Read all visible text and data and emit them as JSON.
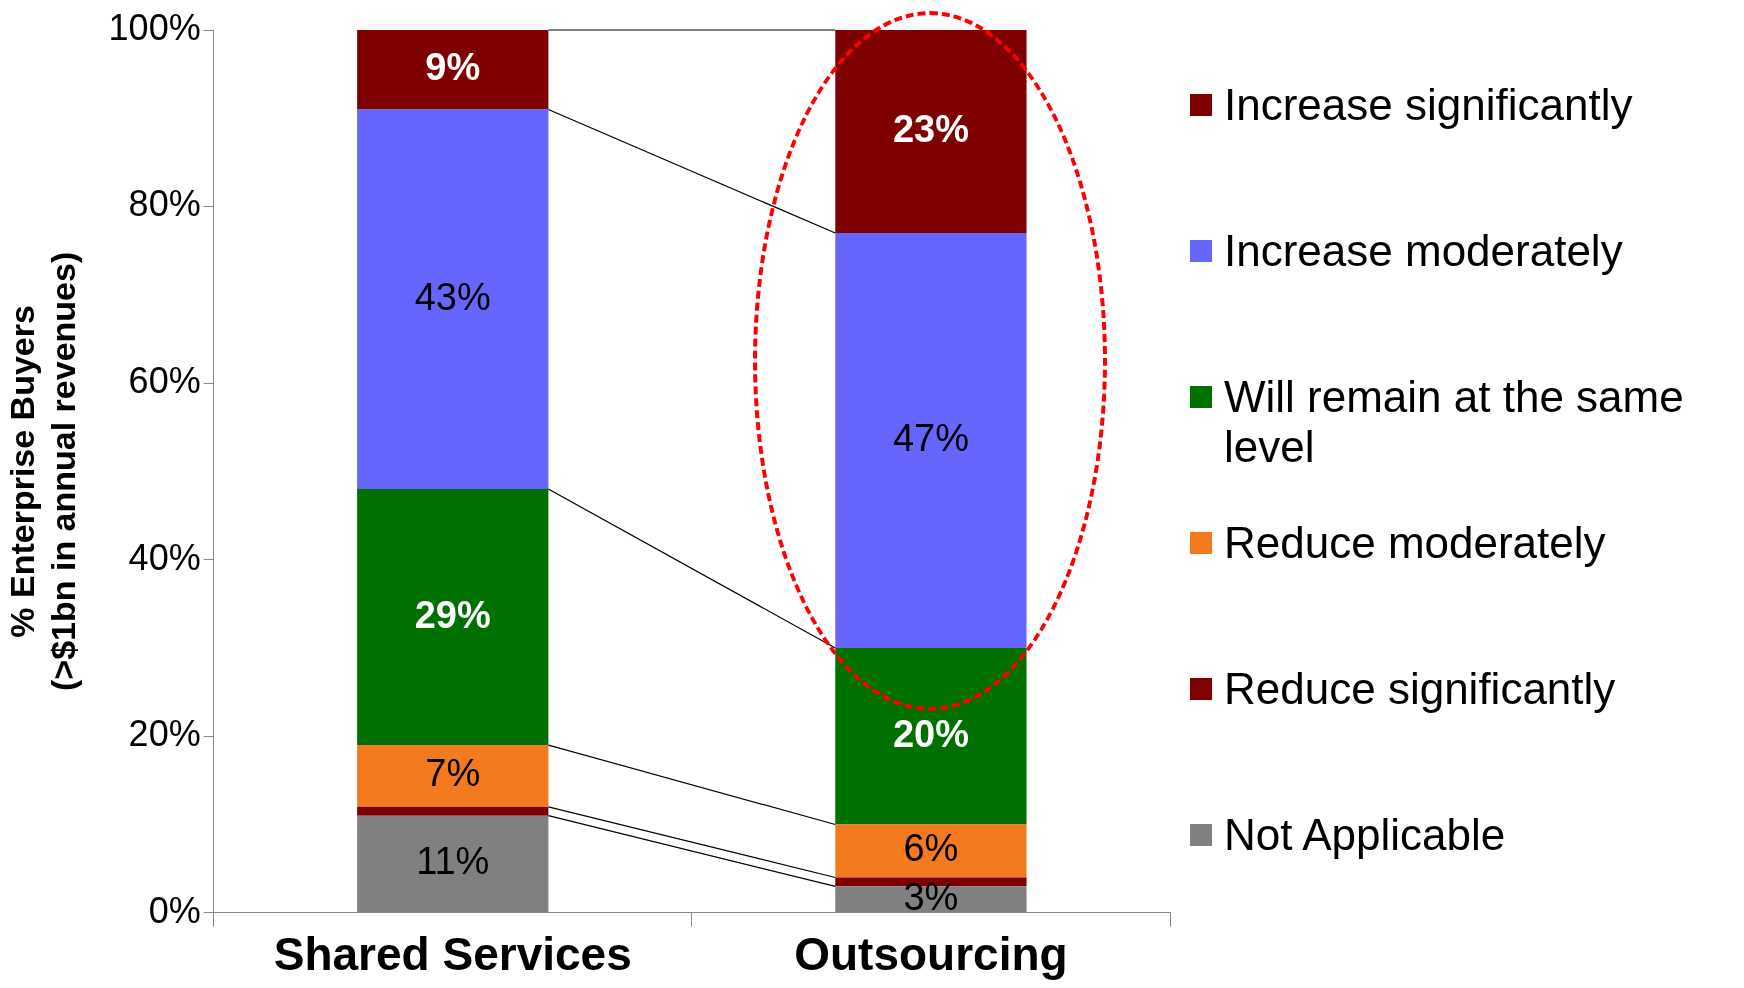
{
  "chart_data": {
    "type": "bar",
    "stacked": true,
    "ylabel": "% Enterprise Buyers\n(>$1bn in annual revenues)",
    "categories": [
      "Shared Services",
      "Outsourcing"
    ],
    "ylim": [
      0,
      100
    ],
    "yticks": [
      {
        "value": 0,
        "label": "0%"
      },
      {
        "value": 20,
        "label": "20%"
      },
      {
        "value": 40,
        "label": "40%"
      },
      {
        "value": 60,
        "label": "60%"
      },
      {
        "value": 80,
        "label": "80%"
      },
      {
        "value": 100,
        "label": "100%"
      }
    ],
    "grid": false,
    "legend": "right",
    "series": [
      {
        "name": "Not Applicable",
        "color": "#808080",
        "values": [
          11,
          3
        ],
        "value_labels": [
          "11%",
          "3%"
        ]
      },
      {
        "name": "Reduce significantly",
        "color": "#7f0000",
        "values": [
          1,
          1
        ],
        "value_labels": [
          null,
          null
        ]
      },
      {
        "name": "Reduce moderately",
        "color": "#f47a20",
        "values": [
          7,
          6
        ],
        "value_labels": [
          "7%",
          "6%"
        ]
      },
      {
        "name": "Will remain at the same level",
        "color": "#007000",
        "values": [
          29,
          20
        ],
        "value_labels": [
          "29%",
          "20%"
        ]
      },
      {
        "name": "Increase moderately",
        "color": "#6666ff",
        "values": [
          43,
          47
        ],
        "value_labels": [
          "43%",
          "47%"
        ]
      },
      {
        "name": "Increase significantly",
        "color": "#7f0000",
        "values": [
          9,
          23
        ],
        "value_labels": [
          "9%",
          "23%"
        ]
      }
    ]
  }
}
